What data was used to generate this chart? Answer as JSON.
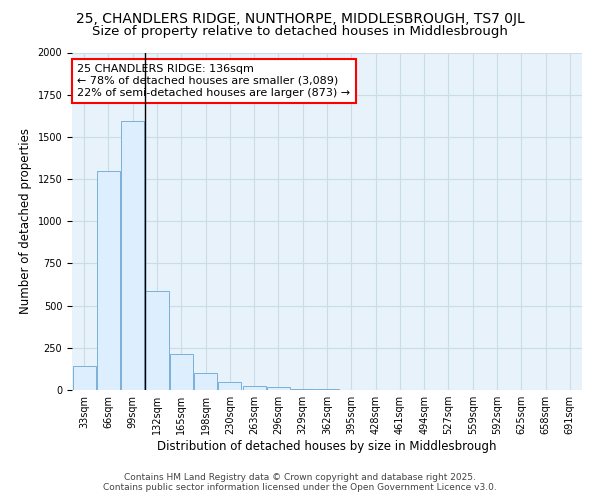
{
  "title": "25, CHANDLERS RIDGE, NUNTHORPE, MIDDLESBROUGH, TS7 0JL",
  "subtitle": "Size of property relative to detached houses in Middlesbrough",
  "xlabel": "Distribution of detached houses by size in Middlesbrough",
  "ylabel": "Number of detached properties",
  "bar_color": "#ddeeff",
  "bar_edge_color": "#7ab0d8",
  "grid_color": "#c8dcea",
  "background_color": "#e8f2fa",
  "fig_background": "#ffffff",
  "categories": [
    "33sqm",
    "66sqm",
    "99sqm",
    "132sqm",
    "165sqm",
    "198sqm",
    "230sqm",
    "263sqm",
    "296sqm",
    "329sqm",
    "362sqm",
    "395sqm",
    "428sqm",
    "461sqm",
    "494sqm",
    "527sqm",
    "559sqm",
    "592sqm",
    "625sqm",
    "658sqm",
    "691sqm"
  ],
  "values": [
    140,
    1295,
    1595,
    585,
    215,
    100,
    50,
    25,
    20,
    5,
    5,
    0,
    0,
    0,
    0,
    0,
    0,
    0,
    0,
    0,
    0
  ],
  "ylim": [
    0,
    2000
  ],
  "marker_bin_index": 2,
  "annotation_line1": "25 CHANDLERS RIDGE: 136sqm",
  "annotation_line2": "← 78% of detached houses are smaller (3,089)",
  "annotation_line3": "22% of semi-detached houses are larger (873) →",
  "footer_line1": "Contains HM Land Registry data © Crown copyright and database right 2025.",
  "footer_line2": "Contains public sector information licensed under the Open Government Licence v3.0.",
  "title_fontsize": 10,
  "subtitle_fontsize": 9.5,
  "tick_fontsize": 7,
  "ylabel_fontsize": 8.5,
  "xlabel_fontsize": 8.5,
  "annotation_fontsize": 8,
  "footer_fontsize": 6.5
}
